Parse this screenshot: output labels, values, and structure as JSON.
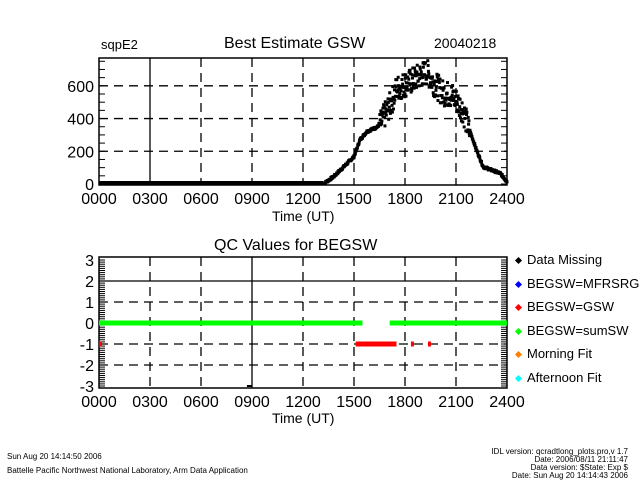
{
  "header": {
    "site": "sqpE2",
    "title": "Best Estimate GSW",
    "date": "20040218"
  },
  "chart_data": [
    {
      "type": "scatter",
      "title": "Best Estimate GSW",
      "xlabel": "Time (UT)",
      "ylabel": "",
      "xlim": [
        0,
        24
      ],
      "ylim": [
        0,
        770
      ],
      "grid": true,
      "x_tick_labels": [
        "0000",
        "0300",
        "0600",
        "0900",
        "1200",
        "1500",
        "1800",
        "2100",
        "2400"
      ],
      "y_tick_labels": [
        "0",
        "200",
        "400",
        "600"
      ],
      "y_ticks": [
        0,
        200,
        400,
        600
      ],
      "series": [
        {
          "name": "GSW",
          "color": "#000000",
          "x": [
            0,
            13.2,
            13.8,
            15.0,
            15.35,
            15.75,
            16.4,
            16.8,
            17.2,
            17.5,
            18.3,
            18.9,
            19.3,
            19.65,
            20.2,
            20.8,
            21.4,
            21.8,
            22.2,
            22.6,
            23.6,
            24.0
          ],
          "y": [
            0,
            0,
            45,
            167,
            270,
            320,
            350,
            435,
            515,
            600,
            640,
            680,
            700,
            640,
            575,
            555,
            470,
            330,
            210,
            105,
            65,
            15
          ]
        }
      ]
    },
    {
      "type": "scatter",
      "title": "QC Values for BEGSW",
      "xlabel": "Time (UT)",
      "xlim": [
        0,
        24
      ],
      "ylim": [
        -3,
        3
      ],
      "grid": true,
      "x_tick_labels": [
        "0000",
        "0300",
        "0600",
        "0900",
        "1200",
        "1500",
        "1800",
        "2100",
        "2400"
      ],
      "y_tick_labels": [
        "3",
        "2",
        "1",
        "0",
        "-1",
        "-2",
        "-3"
      ],
      "y_ticks": [
        3,
        2,
        1,
        0,
        -1,
        -2,
        -3
      ],
      "legend_position": "right",
      "series": [
        {
          "name": "Data Missing",
          "color": "#000000",
          "value": -3,
          "ranges": [
            [
              8.7,
              9.0
            ]
          ]
        },
        {
          "name": "BEGSW=MFRSRG",
          "color": "#0000ff",
          "value": 1,
          "ranges": []
        },
        {
          "name": "BEGSW=GSW",
          "color": "#ff0000",
          "value": -1,
          "ranges": [
            [
              0.0,
              0.1
            ],
            [
              15.1,
              17.5
            ],
            [
              18.35,
              18.45
            ],
            [
              19.35,
              19.45
            ]
          ]
        },
        {
          "name": "BEGSW=sumSW",
          "color": "#00ff00",
          "value": 0,
          "ranges": [
            [
              0.0,
              15.5
            ],
            [
              17.1,
              24.0
            ]
          ]
        },
        {
          "name": "Morning Fit",
          "color": "#ff8000",
          "value": 2,
          "ranges": []
        },
        {
          "name": "Afternoon Fit",
          "color": "#00ffff",
          "value": 3,
          "ranges": []
        }
      ]
    }
  ],
  "footer": {
    "left_date": "Sun Aug 20 14:14:50 2006",
    "org": "Battelle Pacific Northwest National Laboratory, Arm Data Application",
    "right": [
      "IDL version: qcradtlong_plots.pro,v 1.7",
      "Date: 2006/08/11 21:11:47",
      "Data version: $State: Exp $",
      "Date: Sun Aug 20 14:14:43 2006"
    ]
  }
}
